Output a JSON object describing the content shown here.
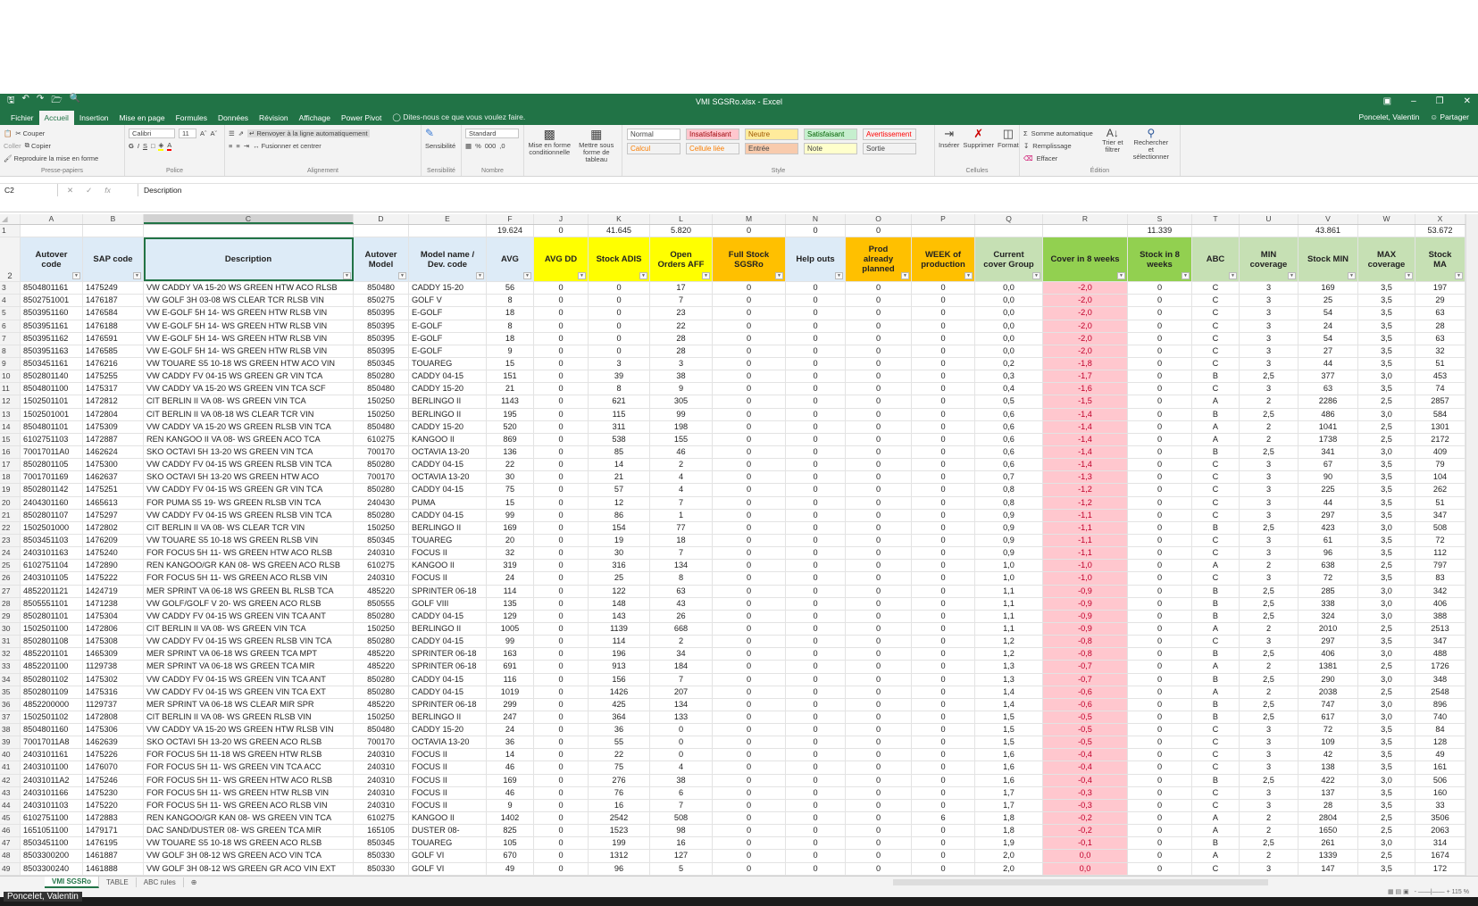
{
  "window": {
    "title": "VMI SGSRo.xlsx - Excel",
    "user": "Poncelet, Valentin",
    "share": "Partager"
  },
  "tabs": [
    "Fichier",
    "Accueil",
    "Insertion",
    "Mise en page",
    "Formules",
    "Données",
    "Révision",
    "Affichage",
    "Power Pivot"
  ],
  "active_tab": "Accueil",
  "tell_me": "Dites-nous ce que vous voulez faire.",
  "ribbon": {
    "clipboard": {
      "paste": "Coller",
      "cut": "Couper",
      "copy": "Copier",
      "format_painter": "Reproduire la mise en forme",
      "label": "Presse-papiers"
    },
    "font": {
      "name": "Calibri",
      "size": "11",
      "bold": "G",
      "italic": "I",
      "underline": "S",
      "label": "Police"
    },
    "alignment": {
      "wrap": "Renvoyer à la ligne automatiquement",
      "merge": "Fusionner et centrer",
      "label": "Alignement"
    },
    "sensitivity": {
      "button": "Sensibilité",
      "label": "Sensibilité"
    },
    "number": {
      "format": "Standard",
      "label": "Nombre"
    },
    "cond_format": "Mise en forme conditionnelle",
    "format_table": "Mettre sous forme de tableau",
    "styles": {
      "items": [
        "Normal",
        "Insatisfaisant",
        "Neutre",
        "Satisfaisant",
        "Avertissement",
        "Calcul",
        "Cellule liée",
        "Entrée",
        "Note",
        "Sortie"
      ],
      "label": "Style"
    },
    "cells": {
      "insert": "Insérer",
      "delete": "Supprimer",
      "format": "Format",
      "label": "Cellules"
    },
    "editing": {
      "autosum": "Somme automatique",
      "fill": "Remplissage",
      "clear": "Effacer",
      "sort": "Trier et filtrer",
      "find": "Rechercher et sélectionner",
      "label": "Édition"
    }
  },
  "formula_bar": {
    "name_box": "C2",
    "value": "Description"
  },
  "columns": [
    "A",
    "B",
    "C",
    "D",
    "E",
    "F",
    "J",
    "K",
    "L",
    "M",
    "N",
    "O",
    "P",
    "Q",
    "R",
    "S",
    "T",
    "U",
    "V",
    "W",
    "X"
  ],
  "selected_column": "C",
  "totals_row": [
    "",
    "",
    "",
    "",
    "",
    "19.624",
    "0",
    "41.645",
    "5.820",
    "0",
    "0",
    "0",
    "",
    "",
    "",
    "11.339",
    "",
    "",
    "43.861",
    "",
    "53.672"
  ],
  "headers": [
    "Autover code",
    "SAP code",
    "Description",
    "Autover Model",
    "Model name / Dev. code",
    "AVG",
    "AVG DD",
    "Stock ADIS",
    "Open Orders AFF",
    "Full Stock SGSRo",
    "Help outs",
    "Prod already planned",
    "WEEK of production",
    "Current cover Group",
    "Cover in 8 weeks",
    "Stock in 8 weeks",
    "ABC",
    "MIN coverage",
    "Stock MIN",
    "MAX coverage",
    "Stock MA"
  ],
  "header_colors": [
    "#ddebf7",
    "#ddebf7",
    "#ddebf7",
    "#ddebf7",
    "#ddebf7",
    "#ddebf7",
    "#ffff00",
    "#ffff00",
    "#ffff00",
    "#ffc000",
    "#ddebf7",
    "#ffc000",
    "#ffc000",
    "#c6e0b4",
    "#92d050",
    "#92d050",
    "#c6e0b4",
    "#c6e0b4",
    "#c6e0b4",
    "#c6e0b4",
    "#c6e0b4"
  ],
  "highlight": {
    "column": "R",
    "fill": "#ffc7ce",
    "text": "#c0002b"
  },
  "rows": [
    [
      "8504801161",
      "1475249",
      "VW CADDY VA 15-20 WS GREEN HTW ACO RLSB",
      "850480",
      "CADDY 15-20",
      "56",
      "0",
      "0",
      "17",
      "0",
      "0",
      "0",
      "0",
      "0,0",
      "-2,0",
      "0",
      "C",
      "3",
      "169",
      "3,5",
      "197"
    ],
    [
      "8502751001",
      "1476187",
      "VW GOLF 3H 03-08 WS CLEAR TCR RLSB VIN",
      "850275",
      "GOLF V",
      "8",
      "0",
      "0",
      "7",
      "0",
      "0",
      "0",
      "0",
      "0,0",
      "-2,0",
      "0",
      "C",
      "3",
      "25",
      "3,5",
      "29"
    ],
    [
      "8503951160",
      "1476584",
      "VW E-GOLF 5H 14- WS GREEN HTW RLSB VIN",
      "850395",
      "E-GOLF",
      "18",
      "0",
      "0",
      "23",
      "0",
      "0",
      "0",
      "0",
      "0,0",
      "-2,0",
      "0",
      "C",
      "3",
      "54",
      "3,5",
      "63"
    ],
    [
      "8503951161",
      "1476188",
      "VW E-GOLF 5H 14- WS GREEN HTW RLSB VIN",
      "850395",
      "E-GOLF",
      "8",
      "0",
      "0",
      "22",
      "0",
      "0",
      "0",
      "0",
      "0,0",
      "-2,0",
      "0",
      "C",
      "3",
      "24",
      "3,5",
      "28"
    ],
    [
      "8503951162",
      "1476591",
      "VW E-GOLF 5H 14- WS GREEN HTW RLSB VIN",
      "850395",
      "E-GOLF",
      "18",
      "0",
      "0",
      "28",
      "0",
      "0",
      "0",
      "0",
      "0,0",
      "-2,0",
      "0",
      "C",
      "3",
      "54",
      "3,5",
      "63"
    ],
    [
      "8503951163",
      "1476585",
      "VW E-GOLF 5H 14- WS GREEN HTW RLSB VIN",
      "850395",
      "E-GOLF",
      "9",
      "0",
      "0",
      "28",
      "0",
      "0",
      "0",
      "0",
      "0,0",
      "-2,0",
      "0",
      "C",
      "3",
      "27",
      "3,5",
      "32"
    ],
    [
      "8503451161",
      "1476216",
      "VW TOUARE S5 10-18 WS GREEN HTW ACO VIN",
      "850345",
      "TOUAREG",
      "15",
      "0",
      "3",
      "3",
      "0",
      "0",
      "0",
      "0",
      "0,2",
      "-1,8",
      "0",
      "C",
      "3",
      "44",
      "3,5",
      "51"
    ],
    [
      "8502801140",
      "1475255",
      "VW CADDY FV 04-15 WS GREEN GR VIN TCA",
      "850280",
      "CADDY 04-15",
      "151",
      "0",
      "39",
      "38",
      "0",
      "0",
      "0",
      "0",
      "0,3",
      "-1,7",
      "0",
      "B",
      "2,5",
      "377",
      "3,0",
      "453"
    ],
    [
      "8504801100",
      "1475317",
      "VW CADDY VA 15-20 WS GREEN VIN TCA SCF",
      "850480",
      "CADDY 15-20",
      "21",
      "0",
      "8",
      "9",
      "0",
      "0",
      "0",
      "0",
      "0,4",
      "-1,6",
      "0",
      "C",
      "3",
      "63",
      "3,5",
      "74"
    ],
    [
      "1502501101",
      "1472812",
      "CIT BERLIN II VA 08- WS GREEN VIN TCA",
      "150250",
      "BERLINGO II",
      "1143",
      "0",
      "621",
      "305",
      "0",
      "0",
      "0",
      "0",
      "0,5",
      "-1,5",
      "0",
      "A",
      "2",
      "2286",
      "2,5",
      "2857"
    ],
    [
      "1502501001",
      "1472804",
      "CIT BERLIN II VA 08-18 WS CLEAR TCR VIN",
      "150250",
      "BERLINGO II",
      "195",
      "0",
      "115",
      "99",
      "0",
      "0",
      "0",
      "0",
      "0,6",
      "-1,4",
      "0",
      "B",
      "2,5",
      "486",
      "3,0",
      "584"
    ],
    [
      "8504801101",
      "1475309",
      "VW CADDY VA 15-20 WS GREEN RLSB VIN TCA",
      "850480",
      "CADDY 15-20",
      "520",
      "0",
      "311",
      "198",
      "0",
      "0",
      "0",
      "0",
      "0,6",
      "-1,4",
      "0",
      "A",
      "2",
      "1041",
      "2,5",
      "1301"
    ],
    [
      "6102751103",
      "1472887",
      "REN KANGOO II VA 08- WS GREEN ACO TCA",
      "610275",
      "KANGOO II",
      "869",
      "0",
      "538",
      "155",
      "0",
      "0",
      "0",
      "0",
      "0,6",
      "-1,4",
      "0",
      "A",
      "2",
      "1738",
      "2,5",
      "2172"
    ],
    [
      "70017011A0",
      "1462624",
      "SKO OCTAVI 5H 13-20 WS GREEN VIN TCA",
      "700170",
      "OCTAVIA 13-20",
      "136",
      "0",
      "85",
      "46",
      "0",
      "0",
      "0",
      "0",
      "0,6",
      "-1,4",
      "0",
      "B",
      "2,5",
      "341",
      "3,0",
      "409"
    ],
    [
      "8502801105",
      "1475300",
      "VW CADDY FV 04-15 WS GREEN RLSB VIN TCA",
      "850280",
      "CADDY 04-15",
      "22",
      "0",
      "14",
      "2",
      "0",
      "0",
      "0",
      "0",
      "0,6",
      "-1,4",
      "0",
      "C",
      "3",
      "67",
      "3,5",
      "79"
    ],
    [
      "7001701169",
      "1462637",
      "SKO OCTAVI 5H 13-20 WS GREEN HTW ACO",
      "700170",
      "OCTAVIA 13-20",
      "30",
      "0",
      "21",
      "4",
      "0",
      "0",
      "0",
      "0",
      "0,7",
      "-1,3",
      "0",
      "C",
      "3",
      "90",
      "3,5",
      "104"
    ],
    [
      "8502801142",
      "1475251",
      "VW CADDY FV 04-15 WS GREEN GR VIN TCA",
      "850280",
      "CADDY 04-15",
      "75",
      "0",
      "57",
      "4",
      "0",
      "0",
      "0",
      "0",
      "0,8",
      "-1,2",
      "0",
      "C",
      "3",
      "225",
      "3,5",
      "262"
    ],
    [
      "2404301160",
      "1465613",
      "FOR PUMA S5 19- WS GREEN RLSB VIN TCA",
      "240430",
      "PUMA",
      "15",
      "0",
      "12",
      "7",
      "0",
      "0",
      "0",
      "0",
      "0,8",
      "-1,2",
      "0",
      "C",
      "3",
      "44",
      "3,5",
      "51"
    ],
    [
      "8502801107",
      "1475297",
      "VW CADDY FV 04-15 WS GREEN RLSB VIN TCA",
      "850280",
      "CADDY 04-15",
      "99",
      "0",
      "86",
      "1",
      "0",
      "0",
      "0",
      "0",
      "0,9",
      "-1,1",
      "0",
      "C",
      "3",
      "297",
      "3,5",
      "347"
    ],
    [
      "1502501000",
      "1472802",
      "CIT BERLIN II VA 08- WS CLEAR TCR VIN",
      "150250",
      "BERLINGO II",
      "169",
      "0",
      "154",
      "77",
      "0",
      "0",
      "0",
      "0",
      "0,9",
      "-1,1",
      "0",
      "B",
      "2,5",
      "423",
      "3,0",
      "508"
    ],
    [
      "8503451103",
      "1476209",
      "VW TOUARE S5 10-18 WS GREEN RLSB VIN",
      "850345",
      "TOUAREG",
      "20",
      "0",
      "19",
      "18",
      "0",
      "0",
      "0",
      "0",
      "0,9",
      "-1,1",
      "0",
      "C",
      "3",
      "61",
      "3,5",
      "72"
    ],
    [
      "2403101163",
      "1475240",
      "FOR FOCUS 5H 11- WS GREEN HTW ACO RLSB",
      "240310",
      "FOCUS II",
      "32",
      "0",
      "30",
      "7",
      "0",
      "0",
      "0",
      "0",
      "0,9",
      "-1,1",
      "0",
      "C",
      "3",
      "96",
      "3,5",
      "112"
    ],
    [
      "6102751104",
      "1472890",
      "REN KANGOO/GR KAN 08- WS GREEN ACO RLSB",
      "610275",
      "KANGOO II",
      "319",
      "0",
      "316",
      "134",
      "0",
      "0",
      "0",
      "0",
      "1,0",
      "-1,0",
      "0",
      "A",
      "2",
      "638",
      "2,5",
      "797"
    ],
    [
      "2403101105",
      "1475222",
      "FOR FOCUS 5H 11- WS GREEN ACO RLSB VIN",
      "240310",
      "FOCUS II",
      "24",
      "0",
      "25",
      "8",
      "0",
      "0",
      "0",
      "0",
      "1,0",
      "-1,0",
      "0",
      "C",
      "3",
      "72",
      "3,5",
      "83"
    ],
    [
      "4852201121",
      "1424719",
      "MER SPRINT VA 06-18 WS GREEN BL RLSB TCA",
      "485220",
      "SPRINTER 06-18",
      "114",
      "0",
      "122",
      "63",
      "0",
      "0",
      "0",
      "0",
      "1,1",
      "-0,9",
      "0",
      "B",
      "2,5",
      "285",
      "3,0",
      "342"
    ],
    [
      "8505551101",
      "1471238",
      "VW GOLF/GOLF V 20- WS GREEN ACO RLSB",
      "850555",
      "GOLF VIII",
      "135",
      "0",
      "148",
      "43",
      "0",
      "0",
      "0",
      "0",
      "1,1",
      "-0,9",
      "0",
      "B",
      "2,5",
      "338",
      "3,0",
      "406"
    ],
    [
      "8502801101",
      "1475304",
      "VW CADDY FV 04-15 WS GREEN VIN TCA ANT",
      "850280",
      "CADDY 04-15",
      "129",
      "0",
      "143",
      "26",
      "0",
      "0",
      "0",
      "0",
      "1,1",
      "-0,9",
      "0",
      "B",
      "2,5",
      "324",
      "3,0",
      "388"
    ],
    [
      "1502501100",
      "1472806",
      "CIT BERLIN II VA 08- WS GREEN VIN TCA",
      "150250",
      "BERLINGO II",
      "1005",
      "0",
      "1139",
      "668",
      "0",
      "0",
      "0",
      "0",
      "1,1",
      "-0,9",
      "0",
      "A",
      "2",
      "2010",
      "2,5",
      "2513"
    ],
    [
      "8502801108",
      "1475308",
      "VW CADDY FV 04-15 WS GREEN RLSB VIN TCA",
      "850280",
      "CADDY 04-15",
      "99",
      "0",
      "114",
      "2",
      "0",
      "0",
      "0",
      "0",
      "1,2",
      "-0,8",
      "0",
      "C",
      "3",
      "297",
      "3,5",
      "347"
    ],
    [
      "4852201101",
      "1465309",
      "MER SPRINT VA 06-18 WS GREEN TCA MPT",
      "485220",
      "SPRINTER 06-18",
      "163",
      "0",
      "196",
      "34",
      "0",
      "0",
      "0",
      "0",
      "1,2",
      "-0,8",
      "0",
      "B",
      "2,5",
      "406",
      "3,0",
      "488"
    ],
    [
      "4852201100",
      "1129738",
      "MER SPRINT VA 06-18 WS GREEN TCA MIR",
      "485220",
      "SPRINTER 06-18",
      "691",
      "0",
      "913",
      "184",
      "0",
      "0",
      "0",
      "0",
      "1,3",
      "-0,7",
      "0",
      "A",
      "2",
      "1381",
      "2,5",
      "1726"
    ],
    [
      "8502801102",
      "1475302",
      "VW CADDY FV 04-15 WS GREEN VIN TCA ANT",
      "850280",
      "CADDY 04-15",
      "116",
      "0",
      "156",
      "7",
      "0",
      "0",
      "0",
      "0",
      "1,3",
      "-0,7",
      "0",
      "B",
      "2,5",
      "290",
      "3,0",
      "348"
    ],
    [
      "8502801109",
      "1475316",
      "VW CADDY FV 04-15 WS GREEN VIN TCA EXT",
      "850280",
      "CADDY 04-15",
      "1019",
      "0",
      "1426",
      "207",
      "0",
      "0",
      "0",
      "0",
      "1,4",
      "-0,6",
      "0",
      "A",
      "2",
      "2038",
      "2,5",
      "2548"
    ],
    [
      "4852200000",
      "1129737",
      "MER SPRINT VA 06-18 WS CLEAR MIR SPR",
      "485220",
      "SPRINTER 06-18",
      "299",
      "0",
      "425",
      "134",
      "0",
      "0",
      "0",
      "0",
      "1,4",
      "-0,6",
      "0",
      "B",
      "2,5",
      "747",
      "3,0",
      "896"
    ],
    [
      "1502501102",
      "1472808",
      "CIT BERLIN II VA 08- WS GREEN RLSB VIN",
      "150250",
      "BERLINGO II",
      "247",
      "0",
      "364",
      "133",
      "0",
      "0",
      "0",
      "0",
      "1,5",
      "-0,5",
      "0",
      "B",
      "2,5",
      "617",
      "3,0",
      "740"
    ],
    [
      "8504801160",
      "1475306",
      "VW CADDY VA 15-20 WS GREEN HTW RLSB VIN",
      "850480",
      "CADDY 15-20",
      "24",
      "0",
      "36",
      "0",
      "0",
      "0",
      "0",
      "0",
      "1,5",
      "-0,5",
      "0",
      "C",
      "3",
      "72",
      "3,5",
      "84"
    ],
    [
      "70017011A8",
      "1462639",
      "SKO OCTAVI 5H 13-20 WS GREEN ACO RLSB",
      "700170",
      "OCTAVIA 13-20",
      "36",
      "0",
      "55",
      "0",
      "0",
      "0",
      "0",
      "0",
      "1,5",
      "-0,5",
      "0",
      "C",
      "3",
      "109",
      "3,5",
      "128"
    ],
    [
      "2403101161",
      "1475226",
      "FOR FOCUS 5H 11-18 WS GREEN HTW RLSB",
      "240310",
      "FOCUS II",
      "14",
      "0",
      "22",
      "0",
      "0",
      "0",
      "0",
      "0",
      "1,6",
      "-0,4",
      "0",
      "C",
      "3",
      "42",
      "3,5",
      "49"
    ],
    [
      "2403101100",
      "1476070",
      "FOR FOCUS 5H 11- WS GREEN VIN TCA ACC",
      "240310",
      "FOCUS II",
      "46",
      "0",
      "75",
      "4",
      "0",
      "0",
      "0",
      "0",
      "1,6",
      "-0,4",
      "0",
      "C",
      "3",
      "138",
      "3,5",
      "161"
    ],
    [
      "24031011A2",
      "1475246",
      "FOR FOCUS 5H 11- WS GREEN HTW ACO RLSB",
      "240310",
      "FOCUS II",
      "169",
      "0",
      "276",
      "38",
      "0",
      "0",
      "0",
      "0",
      "1,6",
      "-0,4",
      "0",
      "B",
      "2,5",
      "422",
      "3,0",
      "506"
    ],
    [
      "2403101166",
      "1475230",
      "FOR FOCUS 5H 11- WS GREEN HTW RLSB VIN",
      "240310",
      "FOCUS II",
      "46",
      "0",
      "76",
      "6",
      "0",
      "0",
      "0",
      "0",
      "1,7",
      "-0,3",
      "0",
      "C",
      "3",
      "137",
      "3,5",
      "160"
    ],
    [
      "2403101103",
      "1475220",
      "FOR FOCUS 5H 11- WS GREEN ACO RLSB VIN",
      "240310",
      "FOCUS II",
      "9",
      "0",
      "16",
      "7",
      "0",
      "0",
      "0",
      "0",
      "1,7",
      "-0,3",
      "0",
      "C",
      "3",
      "28",
      "3,5",
      "33"
    ],
    [
      "6102751100",
      "1472883",
      "REN KANGOO/GR KAN 08- WS GREEN VIN TCA",
      "610275",
      "KANGOO II",
      "1402",
      "0",
      "2542",
      "508",
      "0",
      "0",
      "0",
      "6",
      "1,8",
      "-0,2",
      "0",
      "A",
      "2",
      "2804",
      "2,5",
      "3506"
    ],
    [
      "1651051100",
      "1479171",
      "DAC SAND/DUSTER 08- WS GREEN TCA MIR",
      "165105",
      "DUSTER 08-",
      "825",
      "0",
      "1523",
      "98",
      "0",
      "0",
      "0",
      "0",
      "1,8",
      "-0,2",
      "0",
      "A",
      "2",
      "1650",
      "2,5",
      "2063"
    ],
    [
      "8503451100",
      "1476195",
      "VW TOUARE S5 10-18 WS GREEN ACO RLSB",
      "850345",
      "TOUAREG",
      "105",
      "0",
      "199",
      "16",
      "0",
      "0",
      "0",
      "0",
      "1,9",
      "-0,1",
      "0",
      "B",
      "2,5",
      "261",
      "3,0",
      "314"
    ],
    [
      "8503300200",
      "1461887",
      "VW GOLF 3H 08-12 WS GREEN ACO VIN TCA",
      "850330",
      "GOLF VI",
      "670",
      "0",
      "1312",
      "127",
      "0",
      "0",
      "0",
      "0",
      "2,0",
      "0,0",
      "0",
      "A",
      "2",
      "1339",
      "2,5",
      "1674"
    ],
    [
      "8503300240",
      "1461888",
      "VW GOLF 3H 08-12 WS GREEN GR ACO VIN EXT",
      "850330",
      "GOLF VI",
      "49",
      "0",
      "96",
      "5",
      "0",
      "0",
      "0",
      "0",
      "2,0",
      "0,0",
      "0",
      "C",
      "3",
      "147",
      "3,5",
      "172"
    ]
  ],
  "sheets": [
    "VMI SGSRo",
    "TABLE",
    "ABC rules"
  ],
  "active_sheet": "VMI SGSRo",
  "zoom_level": "115 %",
  "taskbar": {
    "user": "Poncelet, Valentin"
  }
}
